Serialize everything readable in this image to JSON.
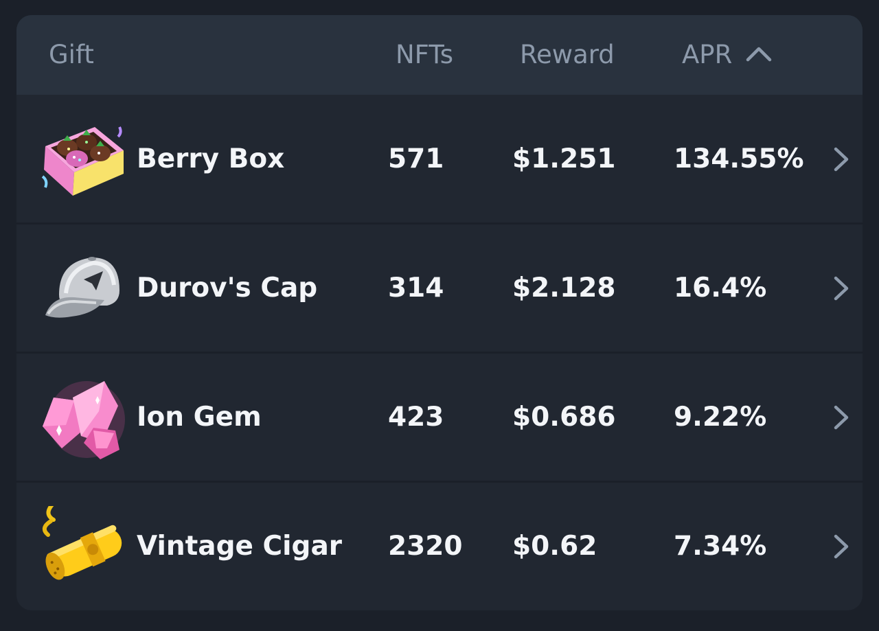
{
  "header": {
    "gift": "Gift",
    "nfts": "NFTs",
    "reward": "Reward",
    "apr": "APR",
    "sort_icon": "chevron-up-icon"
  },
  "rows": [
    {
      "name": "Berry Box",
      "nfts": "571",
      "reward": "$1.251",
      "apr": "134.55%",
      "icon": "berry-box-icon"
    },
    {
      "name": "Durov's Cap",
      "nfts": "314",
      "reward": "$2.128",
      "apr": "16.4%",
      "icon": "cap-icon"
    },
    {
      "name": "Ion Gem",
      "nfts": "423",
      "reward": "$0.686",
      "apr": "9.22%",
      "icon": "gem-icon"
    },
    {
      "name": "Vintage Cigar",
      "nfts": "2320",
      "reward": "$0.62",
      "apr": "7.34%",
      "icon": "cigar-icon"
    }
  ],
  "colors": {
    "background": "#1b2029",
    "card": "#212731",
    "header": "#29323e",
    "header_text": "#8d9aab",
    "cell_text": "#f3f5f8"
  }
}
